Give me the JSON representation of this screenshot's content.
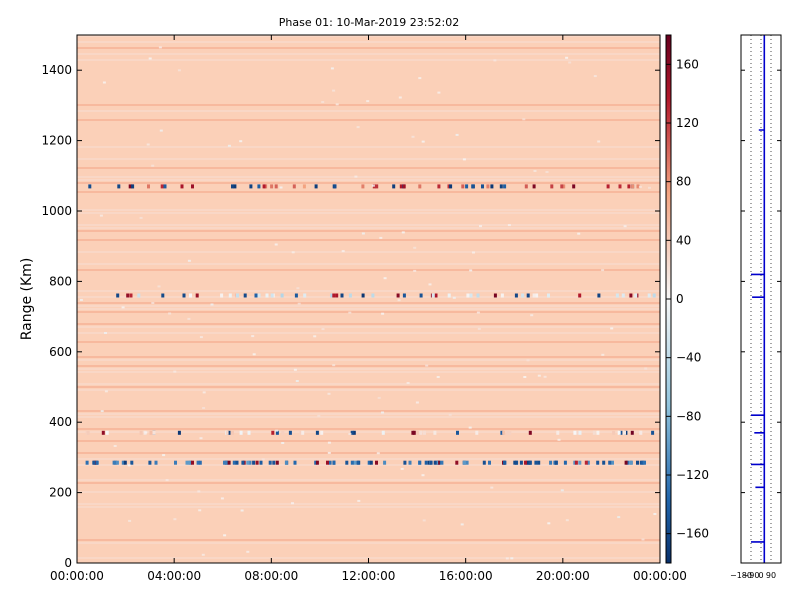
{
  "chart_data": [
    {
      "type": "heatmap",
      "title": "Phase 01: 10-Mar-2019 23:52:02",
      "xlabel": "",
      "ylabel": "Range (Km)",
      "x_ticks": [
        "00:00:00",
        "04:00:00",
        "08:00:00",
        "12:00:00",
        "16:00:00",
        "20:00:00",
        "00:00:00"
      ],
      "xlim_hours": [
        0,
        24
      ],
      "ylim": [
        0,
        1500
      ],
      "y_ticks": [
        0,
        200,
        400,
        600,
        800,
        1000,
        1200,
        1400
      ],
      "background_value": 50,
      "grid": false,
      "colorbar": {
        "range": [
          -180,
          180
        ],
        "ticks": [
          160,
          120,
          80,
          40,
          0,
          -40,
          -80,
          -120,
          -160
        ],
        "colormap": "RdBu_r",
        "low_color": "#08306b",
        "mid_color": "#f7f7f7",
        "high_color": "#67001f"
      },
      "highlight_bands": [
        {
          "range_km": 1070,
          "typical_value": 100
        },
        {
          "range_km": 760,
          "typical_value": -20
        },
        {
          "range_km": 285,
          "typical_value": -130
        },
        {
          "range_km": 370,
          "typical_value": 20
        }
      ]
    },
    {
      "type": "line",
      "title": "",
      "x_ticks": [
        -180,
        -90,
        0,
        90
      ],
      "xlim": [
        -180,
        180
      ],
      "ylim": [
        0,
        1500
      ],
      "grid": true,
      "series_color": "#0000cc",
      "baseline_phase": 30,
      "spikes": [
        {
          "range_km": 1230,
          "phase": -20
        },
        {
          "range_km": 820,
          "phase": -90
        },
        {
          "range_km": 755,
          "phase": -80
        },
        {
          "range_km": 420,
          "phase": -90
        },
        {
          "range_km": 370,
          "phase": -60
        },
        {
          "range_km": 280,
          "phase": -90
        },
        {
          "range_km": 215,
          "phase": -50
        },
        {
          "range_km": 60,
          "phase": -90
        }
      ]
    }
  ]
}
